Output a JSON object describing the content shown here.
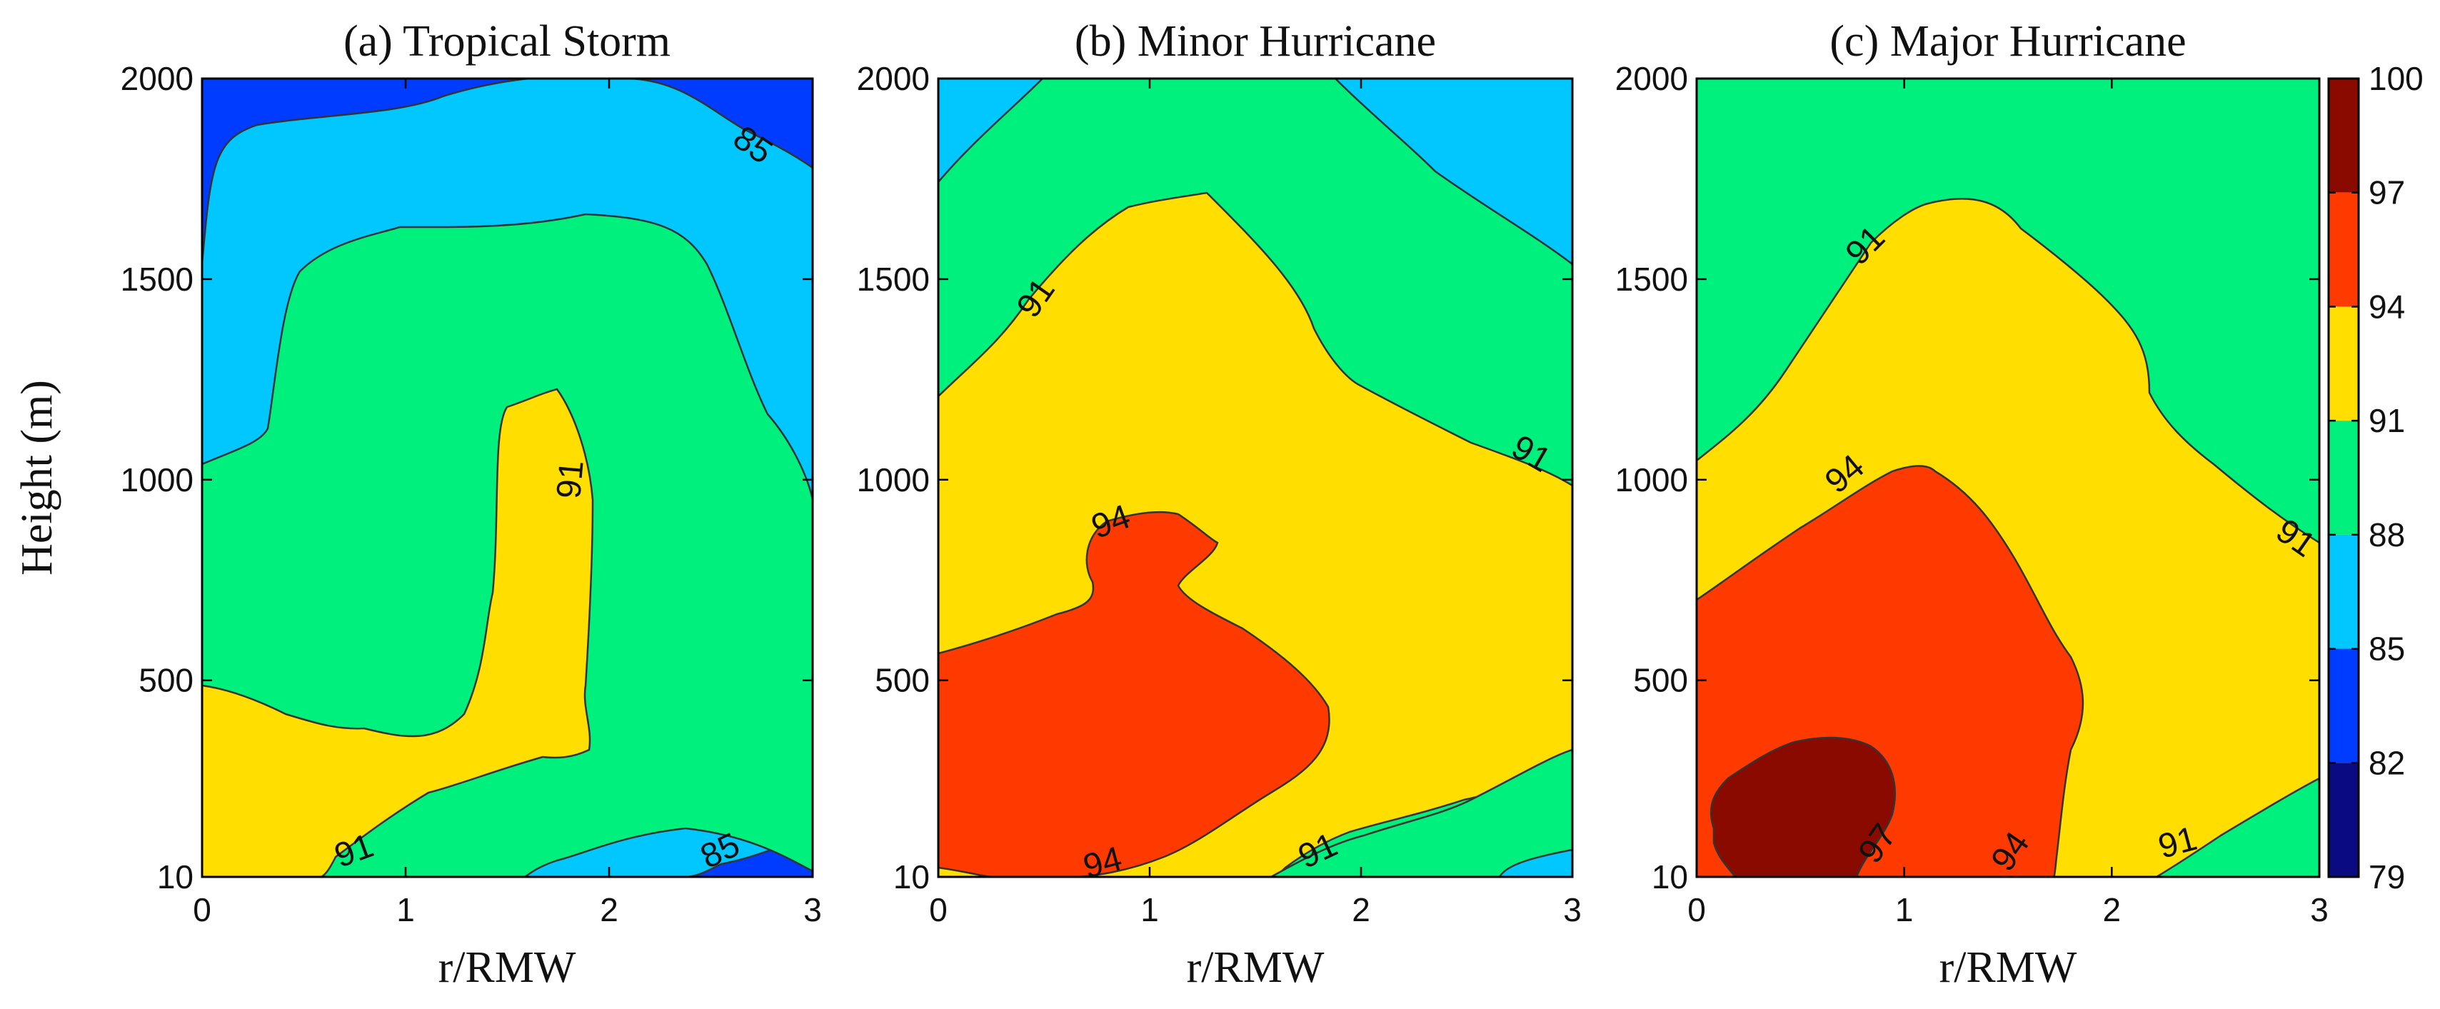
{
  "chart_data": [
    {
      "type": "contour",
      "title": "(a) Tropical Storm",
      "xlabel": "r/RMW",
      "ylabel": "Height (m)",
      "xlim": [
        0,
        3
      ],
      "ylim": [
        10,
        2000
      ],
      "xticks": [
        "0",
        "1",
        "2",
        "3"
      ],
      "yticks": [
        "10",
        "500",
        "1000",
        "1500",
        "2000"
      ],
      "contour_labels": [
        {
          "text": "85",
          "x": 2.7,
          "y": 1830,
          "angle": 35
        },
        {
          "text": "91",
          "x": 1.82,
          "y": 1000,
          "angle": -85
        },
        {
          "text": "91",
          "x": 0.75,
          "y": 70,
          "angle": -20
        },
        {
          "text": "85",
          "x": 2.55,
          "y": 70,
          "angle": -25
        }
      ]
    },
    {
      "type": "contour",
      "title": "(b) Minor Hurricane",
      "xlabel": "r/RMW",
      "xlim": [
        0,
        3
      ],
      "ylim": [
        10,
        2000
      ],
      "xticks": [
        "0",
        "1",
        "2",
        "3"
      ],
      "yticks": [
        "10",
        "500",
        "1000",
        "1500",
        "2000"
      ],
      "contour_labels": [
        {
          "text": "91",
          "x": 0.47,
          "y": 1450,
          "angle": -55
        },
        {
          "text": "91",
          "x": 2.8,
          "y": 1060,
          "angle": 30
        },
        {
          "text": "94",
          "x": 0.82,
          "y": 890,
          "angle": -20
        },
        {
          "text": "94",
          "x": 0.78,
          "y": 40,
          "angle": -15
        },
        {
          "text": "91",
          "x": 1.8,
          "y": 70,
          "angle": -25
        }
      ]
    },
    {
      "type": "contour",
      "title": "(c) Major Hurricane",
      "xlabel": "r/RMW",
      "xlim": [
        0,
        3
      ],
      "ylim": [
        10,
        2000
      ],
      "xticks": [
        "0",
        "1",
        "2",
        "3"
      ],
      "yticks": [
        "10",
        "500",
        "1000",
        "1500",
        "2000"
      ],
      "contour_labels": [
        {
          "text": "91",
          "x": 0.82,
          "y": 1580,
          "angle": -45
        },
        {
          "text": "94",
          "x": 0.72,
          "y": 1010,
          "angle": -40
        },
        {
          "text": "91",
          "x": 2.88,
          "y": 850,
          "angle": 35
        },
        {
          "text": "97",
          "x": 0.88,
          "y": 90,
          "angle": -55
        },
        {
          "text": "94",
          "x": 1.52,
          "y": 70,
          "angle": -55
        },
        {
          "text": "91",
          "x": 2.32,
          "y": 90,
          "angle": -15
        }
      ]
    }
  ],
  "colorbar": {
    "ticks": [
      "100",
      "97",
      "94",
      "91",
      "88",
      "85",
      "82",
      "79"
    ],
    "levels": [
      {
        "lo": 97,
        "hi": 100,
        "color": "#8b0a00"
      },
      {
        "lo": 94,
        "hi": 97,
        "color": "#ff3a00"
      },
      {
        "lo": 91,
        "hi": 94,
        "color": "#ffde00"
      },
      {
        "lo": 88,
        "hi": 91,
        "color": "#00f07e"
      },
      {
        "lo": 85,
        "hi": 88,
        "color": "#00c8ff"
      },
      {
        "lo": 82,
        "hi": 85,
        "color": "#003cff"
      },
      {
        "lo": 79,
        "hi": 82,
        "color": "#0a0a82"
      }
    ]
  },
  "colors": {
    "c79": "#0a0a82",
    "c82": "#003cff",
    "c85": "#00c8ff",
    "c88": "#00f07e",
    "c91": "#ffde00",
    "c94": "#ff3a00",
    "c97": "#8b0a00"
  }
}
